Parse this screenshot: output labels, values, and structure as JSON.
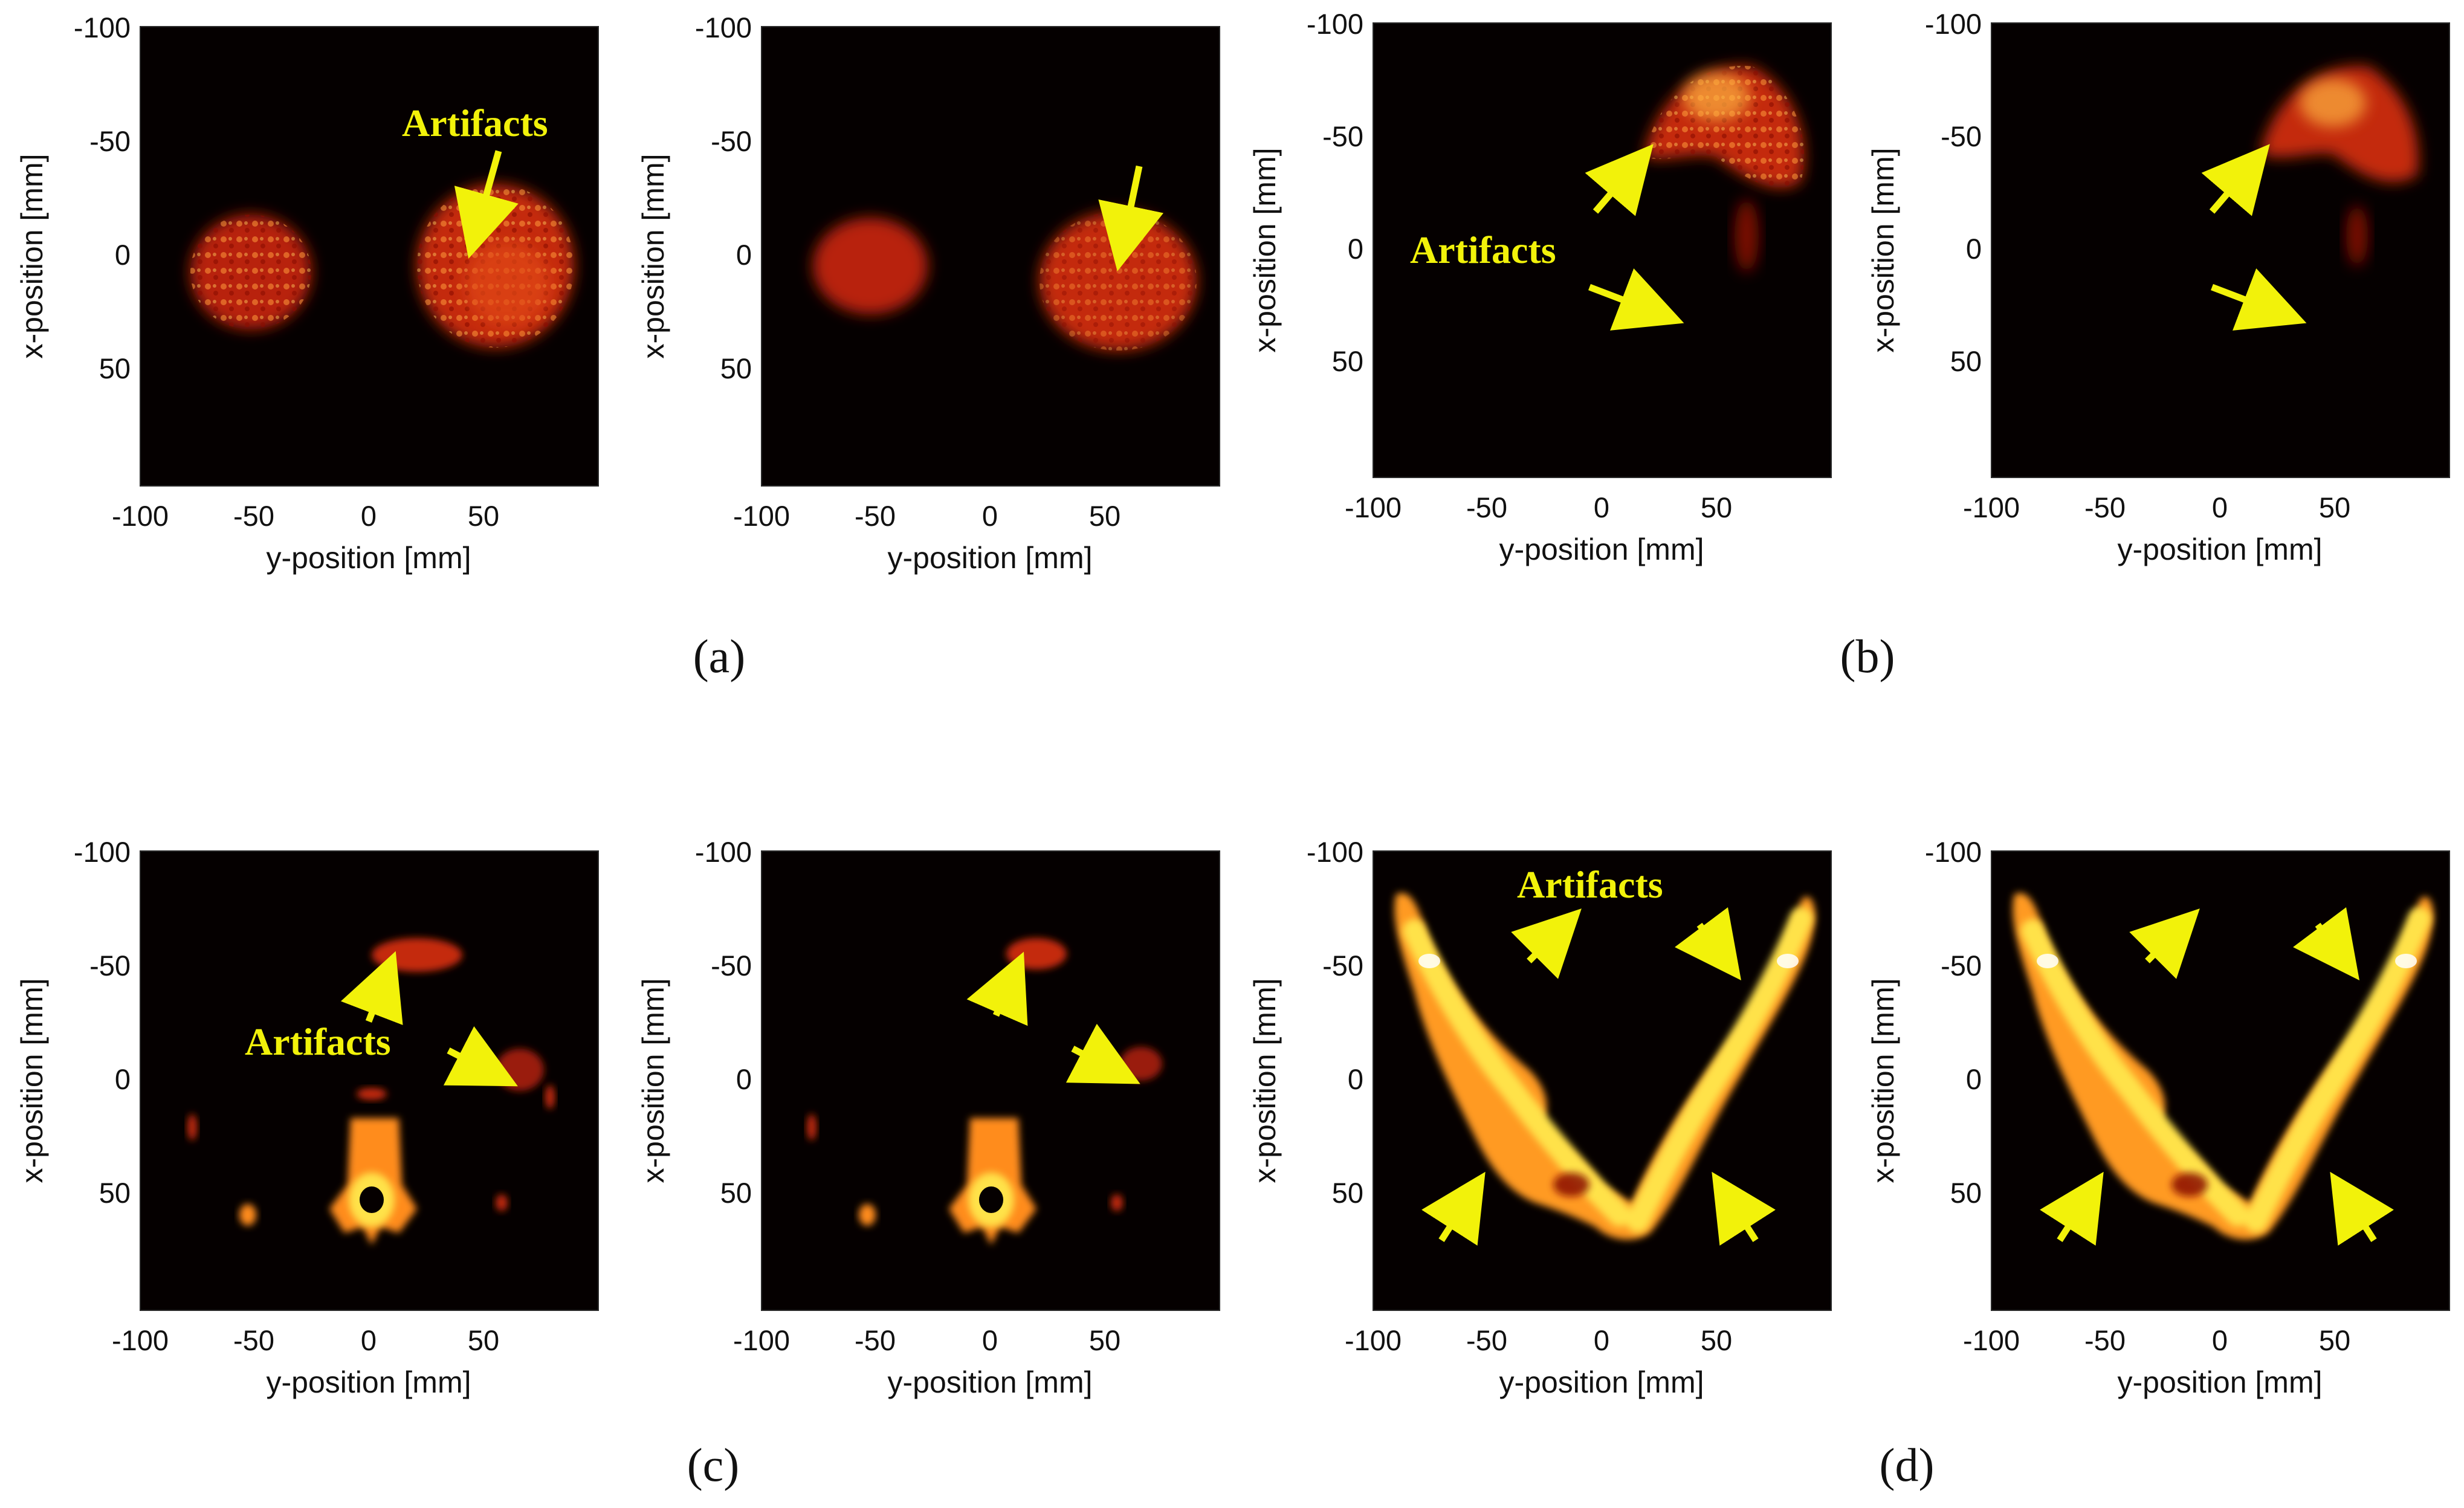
{
  "figure": {
    "panel_captions": [
      "(a)",
      "(b)",
      "(c)",
      "(d)"
    ],
    "annotation_text": "Artifacts",
    "axes": {
      "xlabel": "y-position [mm]",
      "ylabel": "x-position [mm]",
      "x_ticks": [
        "-100",
        "-50",
        "0",
        "50"
      ],
      "y_ticks": [
        "-100",
        "-50",
        "0",
        "50"
      ]
    },
    "colors": {
      "background": "#ffffff",
      "image_background": "#050000",
      "colormap": [
        "#000000",
        "#8a0c00",
        "#e23a12",
        "#ff8c1a",
        "#ffe24a",
        "#ffffff"
      ],
      "annotation": "#f2f20a"
    }
  }
}
